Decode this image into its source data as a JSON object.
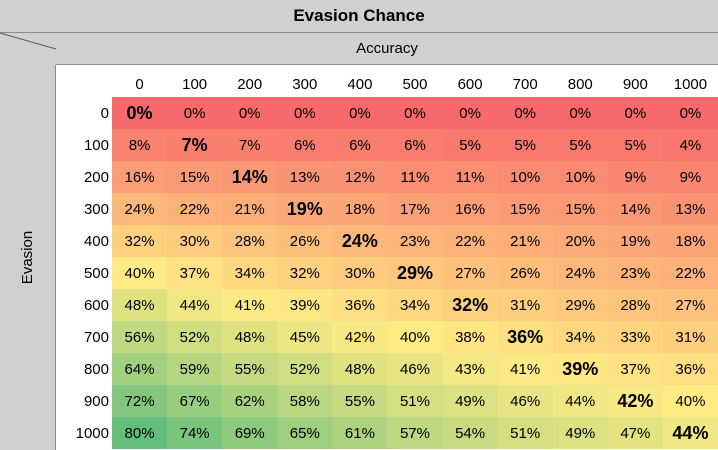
{
  "title": "Evasion Chance",
  "accuracy_label": "Accuracy",
  "evasion_label": "Evasion",
  "columns": [
    "0",
    "100",
    "200",
    "300",
    "400",
    "500",
    "600",
    "700",
    "800",
    "900",
    "1000"
  ],
  "rows": [
    "0",
    "100",
    "200",
    "300",
    "400",
    "500",
    "600",
    "700",
    "800",
    "900",
    "1000"
  ],
  "table": [
    [
      "0%",
      "0%",
      "0%",
      "0%",
      "0%",
      "0%",
      "0%",
      "0%",
      "0%",
      "0%",
      "0%"
    ],
    [
      "8%",
      "7%",
      "7%",
      "6%",
      "6%",
      "6%",
      "5%",
      "5%",
      "5%",
      "5%",
      "4%"
    ],
    [
      "16%",
      "15%",
      "14%",
      "13%",
      "12%",
      "11%",
      "11%",
      "10%",
      "10%",
      "9%",
      "9%"
    ],
    [
      "24%",
      "22%",
      "21%",
      "19%",
      "18%",
      "17%",
      "16%",
      "15%",
      "15%",
      "14%",
      "13%"
    ],
    [
      "32%",
      "30%",
      "28%",
      "26%",
      "24%",
      "23%",
      "22%",
      "21%",
      "20%",
      "19%",
      "18%"
    ],
    [
      "40%",
      "37%",
      "34%",
      "32%",
      "30%",
      "29%",
      "27%",
      "26%",
      "24%",
      "23%",
      "22%"
    ],
    [
      "48%",
      "44%",
      "41%",
      "39%",
      "36%",
      "34%",
      "32%",
      "31%",
      "29%",
      "28%",
      "27%"
    ],
    [
      "56%",
      "52%",
      "48%",
      "45%",
      "42%",
      "40%",
      "38%",
      "36%",
      "34%",
      "33%",
      "31%"
    ],
    [
      "64%",
      "59%",
      "55%",
      "52%",
      "48%",
      "46%",
      "43%",
      "41%",
      "39%",
      "37%",
      "36%"
    ],
    [
      "72%",
      "67%",
      "62%",
      "58%",
      "55%",
      "51%",
      "49%",
      "46%",
      "44%",
      "42%",
      "40%"
    ],
    [
      "80%",
      "74%",
      "69%",
      "65%",
      "61%",
      "57%",
      "54%",
      "51%",
      "49%",
      "47%",
      "44%"
    ]
  ],
  "colors": {
    "low": "#f8696b",
    "mid": "#ffeb84",
    "high": "#63be7b",
    "header_bg": "#d0d0d0"
  }
}
